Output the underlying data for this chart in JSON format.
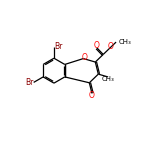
{
  "bg_color": "#ffffff",
  "bond_color": "#000000",
  "atom_colors": {
    "O": "#ff0000",
    "Br": "#8B0000",
    "C": "#000000"
  },
  "bond_width": 0.9,
  "font_size_atom": 5.5,
  "font_size_label": 5.0,
  "bl": 0.082
}
